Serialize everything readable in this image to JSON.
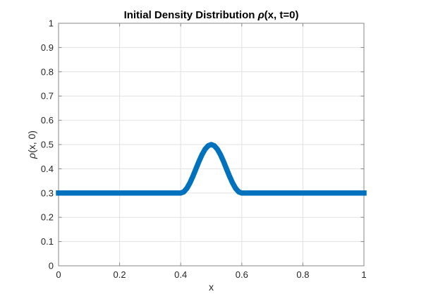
{
  "labels": {
    "title_prefix": "Initial Density Distribution ",
    "title_math": "ρ",
    "title_suffix": "(x, t=0)",
    "ylabel_math": "ρ",
    "ylabel_suffix": "(x, 0)"
  },
  "chart_data": {
    "type": "line",
    "title": "Initial Density Distribution ρ(x, t=0)",
    "xlabel": "x",
    "ylabel": "ρ(x, 0)",
    "xlim": [
      0,
      1
    ],
    "ylim": [
      0,
      1
    ],
    "xticks": [
      0,
      0.2,
      0.4,
      0.6,
      0.8,
      1
    ],
    "xtick_labels": [
      "0",
      "0.2",
      "0.4",
      "0.6",
      "0.8",
      "1"
    ],
    "yticks": [
      0,
      0.1,
      0.2,
      0.3,
      0.4,
      0.5,
      0.6,
      0.7,
      0.8,
      0.9,
      1
    ],
    "ytick_labels": [
      "0",
      "0.1",
      "0.2",
      "0.3",
      "0.4",
      "0.5",
      "0.6",
      "0.7",
      "0.8",
      "0.9",
      "1"
    ],
    "grid": true,
    "legend": null,
    "baseline_value": 0.3,
    "peak": {
      "x": 0.5,
      "y": 0.5
    },
    "colors": {
      "line": "#0072BD",
      "grid": "#e2e2e2",
      "axis": "#878787",
      "tick_label": "#262626"
    },
    "series": [
      {
        "name": "rho(x,0)",
        "x_start": 0,
        "x_step": 0.01,
        "x_end": 1,
        "line_width": 7.5,
        "y": [
          0.3,
          0.3,
          0.3,
          0.3,
          0.3,
          0.3,
          0.3,
          0.3,
          0.3,
          0.3,
          0.3,
          0.3,
          0.3,
          0.3,
          0.3,
          0.3,
          0.3,
          0.3,
          0.3,
          0.3,
          0.3,
          0.3,
          0.3,
          0.3,
          0.3,
          0.3,
          0.3,
          0.3,
          0.3,
          0.3,
          0.3,
          0.3,
          0.3,
          0.3,
          0.3,
          0.3,
          0.3,
          0.3,
          0.3,
          0.3,
          0.3,
          0.3049,
          0.3191,
          0.3412,
          0.3691,
          0.4,
          0.4309,
          0.4588,
          0.4809,
          0.4951,
          0.5,
          0.4951,
          0.4809,
          0.4588,
          0.4309,
          0.4,
          0.3691,
          0.3412,
          0.3191,
          0.3049,
          0.3,
          0.3,
          0.3,
          0.3,
          0.3,
          0.3,
          0.3,
          0.3,
          0.3,
          0.3,
          0.3,
          0.3,
          0.3,
          0.3,
          0.3,
          0.3,
          0.3,
          0.3,
          0.3,
          0.3,
          0.3,
          0.3,
          0.3,
          0.3,
          0.3,
          0.3,
          0.3,
          0.3,
          0.3,
          0.3,
          0.3,
          0.3,
          0.3,
          0.3,
          0.3,
          0.3,
          0.3,
          0.3,
          0.3,
          0.3,
          0.3
        ]
      }
    ]
  }
}
